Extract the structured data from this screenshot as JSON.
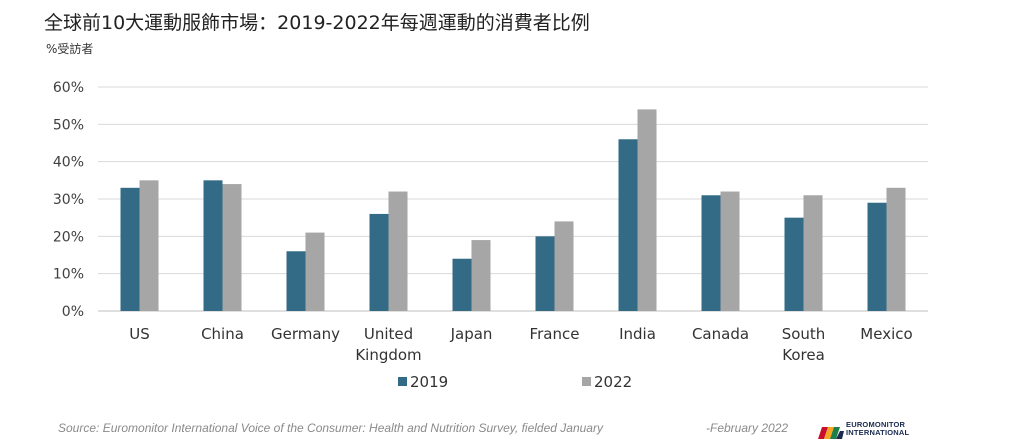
{
  "header": {
    "title": "全球前10大運動服飾市場：2019-2022年每週運動的消費者比例",
    "subtitle": "%受訪者"
  },
  "chart_data": {
    "type": "bar",
    "title": "全球前10大運動服飾市場：2019-2022年每週運動的消費者比例",
    "ylabel": "%受訪者",
    "xlabel": "",
    "categories": [
      "US",
      "China",
      "Germany",
      "United Kingdom",
      "Japan",
      "France",
      "India",
      "Canada",
      "South Korea",
      "Mexico"
    ],
    "category_lines": [
      [
        "US"
      ],
      [
        "China"
      ],
      [
        "Germany"
      ],
      [
        "United",
        "Kingdom"
      ],
      [
        "Japan"
      ],
      [
        "France"
      ],
      [
        "India"
      ],
      [
        "Canada"
      ],
      [
        "South",
        "Korea"
      ],
      [
        "Mexico"
      ]
    ],
    "series": [
      {
        "name": "2019",
        "color": "#336b87",
        "values": [
          33,
          35,
          16,
          26,
          14,
          20,
          46,
          31,
          25,
          29
        ]
      },
      {
        "name": "2022",
        "color": "#a6a6a6",
        "values": [
          35,
          34,
          21,
          32,
          19,
          24,
          54,
          32,
          31,
          33
        ]
      }
    ],
    "ylim": [
      0,
      60
    ],
    "yticks": [
      0,
      10,
      20,
      30,
      40,
      50,
      60
    ],
    "ytick_labels": [
      "0%",
      "10%",
      "20%",
      "30%",
      "40%",
      "50%",
      "60%"
    ],
    "grid": true,
    "legend": "bottom-center"
  },
  "footer": {
    "source": "Source: Euromonitor International Voice of the Consumer: Health and Nutrition Survey, fielded January",
    "date": "-February 2022",
    "logo_line1": "EUROMONITOR",
    "logo_line2": "INTERNATIONAL",
    "logo_colors": [
      "#c8102e",
      "#f5a623",
      "#1a7f4b",
      "#1a2a50"
    ]
  }
}
